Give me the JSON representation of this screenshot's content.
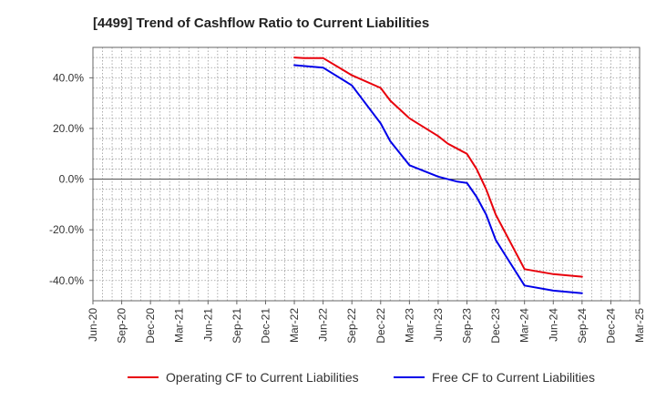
{
  "chart_data": {
    "type": "line",
    "title": "[4499]  Trend of Cashflow Ratio to Current Liabilities",
    "x_ticks": [
      "Jun-20",
      "Sep-20",
      "Dec-20",
      "Mar-21",
      "Jun-21",
      "Sep-21",
      "Dec-21",
      "Mar-22",
      "Jun-22",
      "Sep-22",
      "Dec-22",
      "Mar-23",
      "Jun-23",
      "Sep-23",
      "Dec-23",
      "Mar-24",
      "Jun-24",
      "Sep-24",
      "Dec-24",
      "Mar-25"
    ],
    "y_ticks": [
      "-40.0%",
      "-20.0%",
      "0.0%",
      "20.0%",
      "40.0%"
    ],
    "y_tick_values": [
      -40,
      -20,
      0,
      20,
      40
    ],
    "ylim": [
      -48,
      52
    ],
    "grid": true,
    "legend_position": "bottom",
    "series": [
      {
        "name": "Operating CF to Current Liabilities",
        "color": "#e8000b",
        "points": [
          {
            "x": "Mar-22",
            "y": 48.0
          },
          {
            "x": "Apr-22",
            "y": 47.8
          },
          {
            "x": "Jun-22",
            "y": 47.8
          },
          {
            "x": "Sep-22",
            "y": 41.0
          },
          {
            "x": "Dec-22",
            "y": 36.0
          },
          {
            "x": "Jan-23",
            "y": 31.0
          },
          {
            "x": "Mar-23",
            "y": 24.0
          },
          {
            "x": "Jun-23",
            "y": 17.0
          },
          {
            "x": "Jul-23",
            "y": 14.0
          },
          {
            "x": "Sep-23",
            "y": 10.0
          },
          {
            "x": "Oct-23",
            "y": 4.0
          },
          {
            "x": "Nov-23",
            "y": -4.0
          },
          {
            "x": "Dec-23",
            "y": -14.0
          },
          {
            "x": "Mar-24",
            "y": -35.5
          },
          {
            "x": "Jun-24",
            "y": -37.5
          },
          {
            "x": "Sep-24",
            "y": -38.5
          }
        ]
      },
      {
        "name": "Free CF to Current Liabilities",
        "color": "#0000e8",
        "points": [
          {
            "x": "Mar-22",
            "y": 45.0
          },
          {
            "x": "Jun-22",
            "y": 44.0
          },
          {
            "x": "Sep-22",
            "y": 37.0
          },
          {
            "x": "Dec-22",
            "y": 22.0
          },
          {
            "x": "Jan-23",
            "y": 15.0
          },
          {
            "x": "Mar-23",
            "y": 5.5
          },
          {
            "x": "Jun-23",
            "y": 1.0
          },
          {
            "x": "Aug-23",
            "y": -1.0
          },
          {
            "x": "Sep-23",
            "y": -1.5
          },
          {
            "x": "Oct-23",
            "y": -7.0
          },
          {
            "x": "Nov-23",
            "y": -14.0
          },
          {
            "x": "Dec-23",
            "y": -24.0
          },
          {
            "x": "Jan-24",
            "y": -30.0
          },
          {
            "x": "Mar-24",
            "y": -42.0
          },
          {
            "x": "Jun-24",
            "y": -44.0
          },
          {
            "x": "Sep-24",
            "y": -45.0
          }
        ]
      }
    ]
  }
}
